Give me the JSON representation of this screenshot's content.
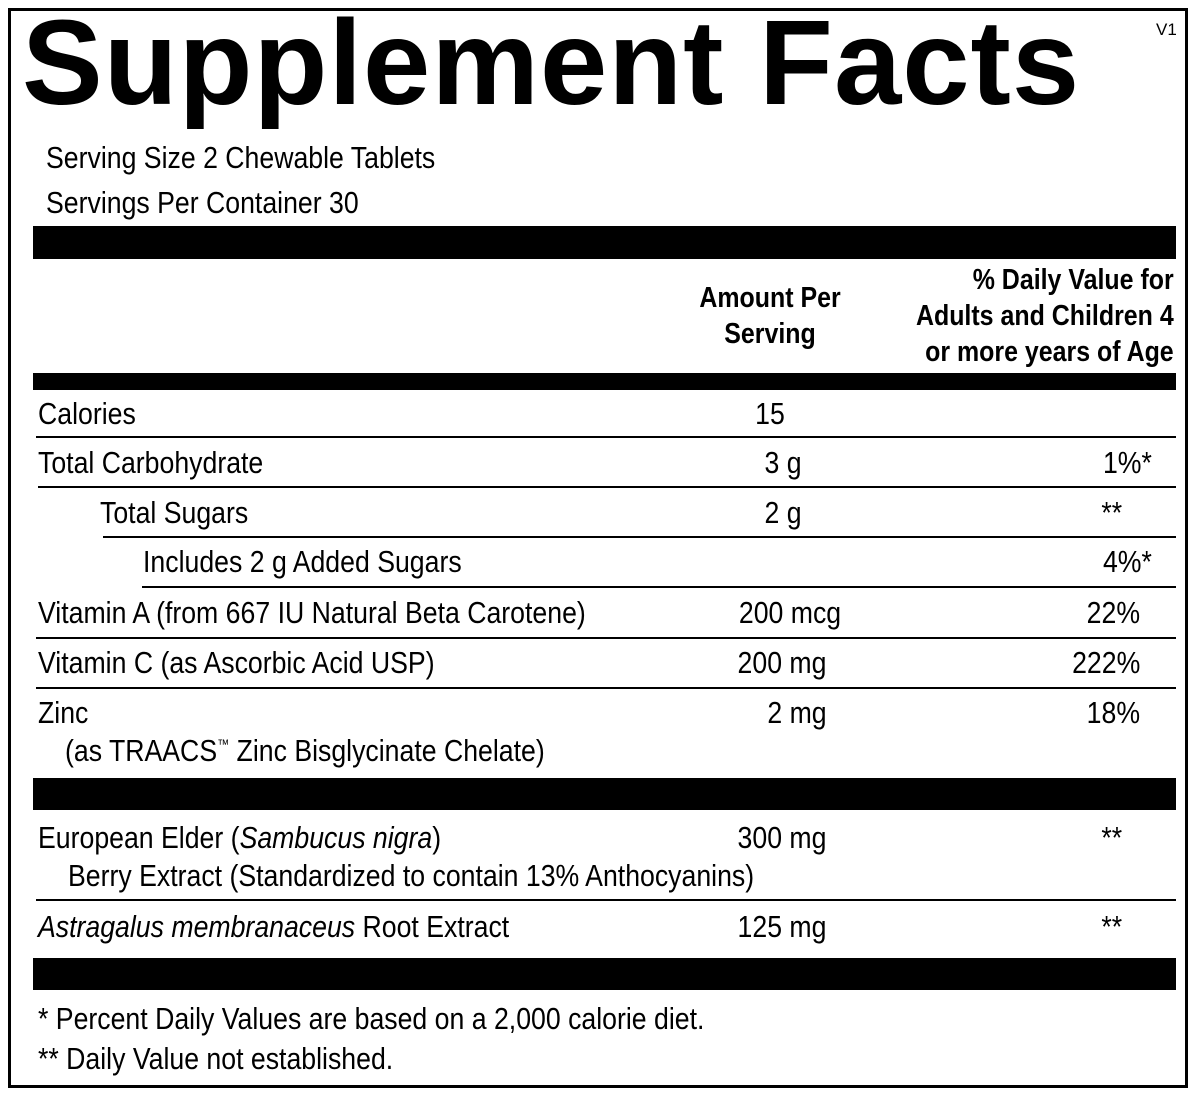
{
  "title": "Supplement Facts",
  "version": "V1",
  "serving_size": "Serving Size 2 Chewable Tablets",
  "servings_per_container": "Servings Per Container 30",
  "headers": {
    "amount_line1": "Amount Per",
    "amount_line2": "Serving",
    "dv_line1": "% Daily Value for",
    "dv_line2": "Adults and Children 4",
    "dv_line3": "or more years of Age"
  },
  "rows": [
    {
      "name": "Calories",
      "amount": "15",
      "dv": ""
    },
    {
      "name": "Total Carbohydrate",
      "amount": "3 g",
      "dv": "1%*"
    },
    {
      "name": "Total Sugars",
      "amount": "2 g",
      "dv": "**"
    },
    {
      "name": "Includes 2 g Added Sugars",
      "amount": "",
      "dv": "4%*"
    },
    {
      "name": "Vitamin A (from 667 IU Natural Beta Carotene)",
      "amount": "200 mcg",
      "dv": "22%"
    },
    {
      "name": "Vitamin C (as Ascorbic Acid USP)",
      "amount": "200 mg",
      "dv": "222%"
    },
    {
      "name": "Zinc",
      "sub_prefix": "(as TRAACS",
      "tm": "™",
      "sub_suffix": " Zinc Bisglycinate Chelate)",
      "amount": "2 mg",
      "dv": "18%"
    }
  ],
  "other": [
    {
      "name_prefix": "European Elder (",
      "name_italic": "Sambucus nigra",
      "name_suffix": ")",
      "sub": "Berry Extract (Standardized to contain 13% Anthocyanins)",
      "amount": "300 mg",
      "dv": "**"
    },
    {
      "name_italic": "Astragalus membranaceus",
      "name_suffix": " Root Extract",
      "amount": "125 mg",
      "dv": "**"
    }
  ],
  "footnotes": [
    "* Percent Daily Values are based on a 2,000 calorie diet.",
    "** Daily Value not established."
  ]
}
